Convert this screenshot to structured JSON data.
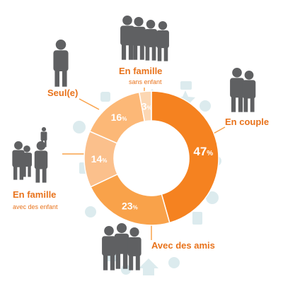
{
  "chart_data": {
    "type": "pie",
    "style": "donut",
    "categories": [
      "En couple",
      "Avec des amis",
      "En famille avec des enfant",
      "Seul(e)",
      "En famille sans enfant"
    ],
    "values": [
      47,
      23,
      14,
      16,
      3
    ],
    "value_labels": [
      "47",
      "23",
      "14",
      "16",
      "3"
    ],
    "unit": "%",
    "slice_colors": [
      "#f58220",
      "#f9a24a",
      "#fbc08c",
      "#fcb877",
      "#fcd7b3"
    ],
    "label_color": "#e8731c",
    "people_color": "#5f6062",
    "background_icon_color": "#dcebee",
    "legend": [
      {
        "title": "En couple",
        "subtitle": ""
      },
      {
        "title": "Avec des amis",
        "subtitle": ""
      },
      {
        "title": "En famille",
        "subtitle": "avec des enfant"
      },
      {
        "title": "Seul(e)",
        "subtitle": ""
      },
      {
        "title": "En famille",
        "subtitle": "sans enfant"
      }
    ],
    "icons": [
      "couple-icon",
      "friends-group-icon",
      "family-with-children-icon",
      "single-person-icon",
      "family-without-children-icon"
    ]
  }
}
